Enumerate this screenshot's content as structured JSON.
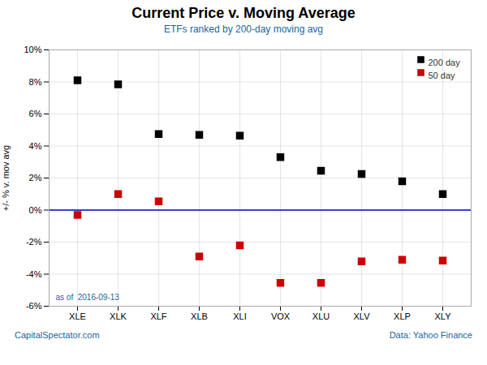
{
  "chart_data": {
    "type": "scatter",
    "title": "Current Price v. Moving Average",
    "subtitle": "ETFs ranked by 200-day moving avg",
    "ylabel": "+/- % v. mov avg",
    "categories": [
      "XLE",
      "XLK",
      "XLF",
      "XLB",
      "XLI",
      "VOX",
      "XLU",
      "XLV",
      "XLP",
      "XLY"
    ],
    "series": [
      {
        "name": "200 day",
        "color": "#000000",
        "marker": "square",
        "values": [
          8.1,
          7.85,
          4.75,
          4.7,
          4.65,
          3.3,
          2.45,
          2.25,
          1.8,
          1.0
        ]
      },
      {
        "name": "50 day",
        "color": "#cc0000",
        "marker": "square",
        "values": [
          -0.3,
          1.0,
          0.55,
          -2.9,
          -2.2,
          -4.55,
          -4.55,
          -3.2,
          -3.1,
          -3.15
        ]
      }
    ],
    "ylim": [
      -6,
      10
    ],
    "yticks": [
      {
        "value": -6,
        "label": "-6%"
      },
      {
        "value": -4,
        "label": "-4%"
      },
      {
        "value": -2,
        "label": "-2%"
      },
      {
        "value": 0,
        "label": "0%"
      },
      {
        "value": 2,
        "label": "2%"
      },
      {
        "value": 4,
        "label": "4%"
      },
      {
        "value": 6,
        "label": "6%"
      },
      {
        "value": 8,
        "label": "8%"
      },
      {
        "value": 10,
        "label": "10%"
      }
    ],
    "reference_line": {
      "value": 0,
      "color": "#0000cc"
    },
    "grid": true,
    "legend": "upper right",
    "annotation": "as of  2016-09-13",
    "footer_left": "CapitalSpectator.com",
    "footer_right": "Data: Yahoo Finance"
  }
}
